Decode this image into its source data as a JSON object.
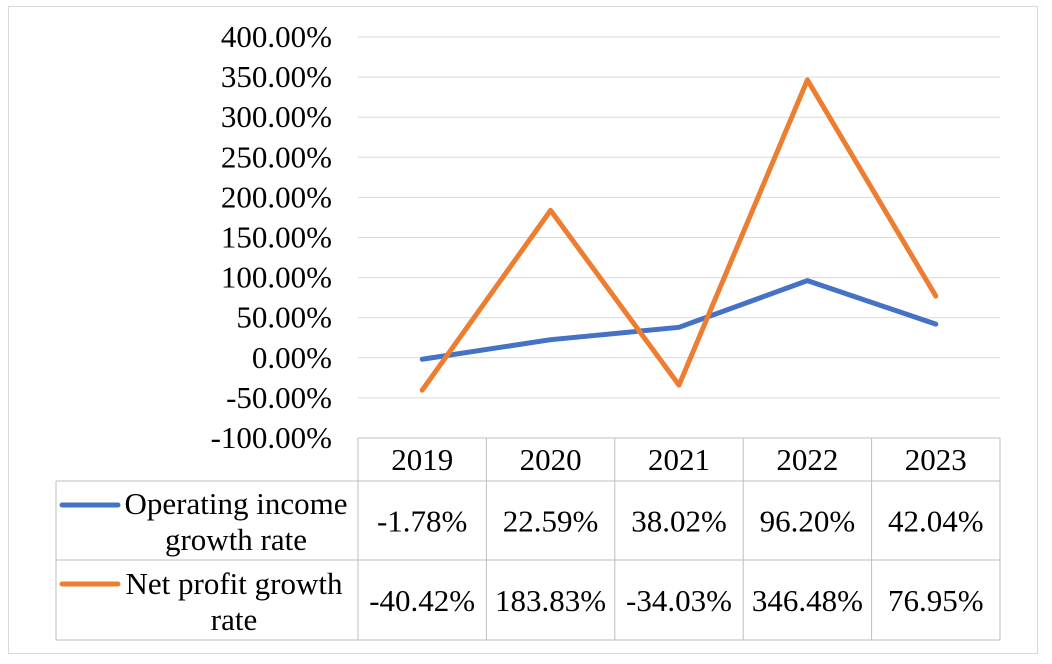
{
  "chart_data": {
    "type": "line",
    "categories": [
      "2019",
      "2020",
      "2021",
      "2022",
      "2023"
    ],
    "ylim": [
      -100,
      400
    ],
    "ytick_step": 50,
    "ytick_labels": [
      "-100.00%",
      "-50.00%",
      "0.00%",
      "50.00%",
      "100.00%",
      "150.00%",
      "200.00%",
      "250.00%",
      "300.00%",
      "350.00%",
      "400.00%"
    ],
    "grid": true,
    "legend": "data-table",
    "series": [
      {
        "name": "Operating income growth rate",
        "label_lines": [
          "Operating income",
          "growth rate"
        ],
        "color": "#4472C4",
        "values": [
          -1.78,
          22.59,
          38.02,
          96.2,
          42.04
        ],
        "value_labels": [
          "-1.78%",
          "22.59%",
          "38.02%",
          "96.20%",
          "42.04%"
        ]
      },
      {
        "name": "Net profit growth rate",
        "label_lines": [
          "Net profit growth",
          "rate"
        ],
        "color": "#ED7D31",
        "values": [
          -40.42,
          183.83,
          -34.03,
          346.48,
          76.95
        ],
        "value_labels": [
          "-40.42%",
          "183.83%",
          "-34.03%",
          "346.48%",
          "76.95%"
        ]
      }
    ]
  }
}
